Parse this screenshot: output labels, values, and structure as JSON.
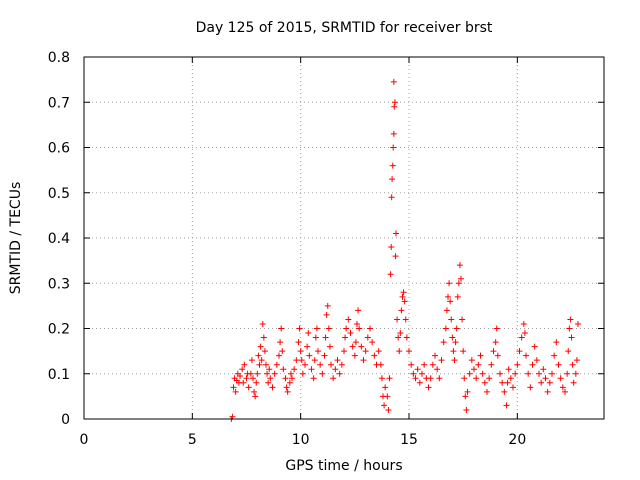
{
  "chart_data": {
    "type": "scatter",
    "title": "Day 125 of 2015, SRMTID for receiver brst",
    "xlabel": "GPS time / hours",
    "ylabel": "SRMTID / TECUs",
    "xlim": [
      0,
      24
    ],
    "ylim": [
      0,
      0.8
    ],
    "xticks": [
      0,
      5,
      10,
      15,
      20
    ],
    "yticks": [
      0,
      0.1,
      0.2,
      0.3,
      0.4,
      0.5,
      0.6,
      0.7,
      0.8
    ],
    "xtick_labels": [
      "0",
      "5",
      "10",
      "15",
      "20"
    ],
    "ytick_labels": [
      "0",
      "0.1",
      "0.2",
      "0.3",
      "0.4",
      "0.5",
      "0.6",
      "0.7",
      "0.8"
    ],
    "grid": true,
    "marker": "+",
    "colors": {
      "series": "#ff0000",
      "grid": "#a0a0a0",
      "axis": "#000000"
    },
    "series": [
      {
        "name": "SRMTID",
        "points": [
          [
            6.8,
            0.0
          ],
          [
            6.85,
            0.005
          ],
          [
            6.9,
            0.07
          ],
          [
            6.95,
            0.09
          ],
          [
            7.0,
            0.06
          ],
          [
            7.05,
            0.085
          ],
          [
            7.1,
            0.1
          ],
          [
            7.15,
            0.08
          ],
          [
            7.2,
            0.095
          ],
          [
            7.3,
            0.11
          ],
          [
            7.35,
            0.08
          ],
          [
            7.4,
            0.12
          ],
          [
            7.5,
            0.09
          ],
          [
            7.55,
            0.1
          ],
          [
            7.6,
            0.07
          ],
          [
            7.7,
            0.1
          ],
          [
            7.75,
            0.13
          ],
          [
            7.8,
            0.09
          ],
          [
            7.85,
            0.06
          ],
          [
            7.9,
            0.05
          ],
          [
            7.95,
            0.08
          ],
          [
            8.0,
            0.1
          ],
          [
            8.05,
            0.14
          ],
          [
            8.1,
            0.12
          ],
          [
            8.15,
            0.16
          ],
          [
            8.2,
            0.13
          ],
          [
            8.25,
            0.21
          ],
          [
            8.3,
            0.18
          ],
          [
            8.35,
            0.15
          ],
          [
            8.4,
            0.12
          ],
          [
            8.45,
            0.1
          ],
          [
            8.5,
            0.08
          ],
          [
            8.55,
            0.11
          ],
          [
            8.6,
            0.09
          ],
          [
            8.7,
            0.07
          ],
          [
            8.8,
            0.1
          ],
          [
            8.9,
            0.12
          ],
          [
            9.0,
            0.14
          ],
          [
            9.05,
            0.17
          ],
          [
            9.1,
            0.2
          ],
          [
            9.15,
            0.15
          ],
          [
            9.2,
            0.11
          ],
          [
            9.3,
            0.09
          ],
          [
            9.35,
            0.07
          ],
          [
            9.4,
            0.06
          ],
          [
            9.5,
            0.08
          ],
          [
            9.55,
            0.1
          ],
          [
            9.6,
            0.09
          ],
          [
            9.7,
            0.11
          ],
          [
            9.8,
            0.13
          ],
          [
            9.9,
            0.17
          ],
          [
            9.95,
            0.2
          ],
          [
            10.0,
            0.15
          ],
          [
            10.05,
            0.13
          ],
          [
            10.1,
            0.1
          ],
          [
            10.2,
            0.12
          ],
          [
            10.3,
            0.16
          ],
          [
            10.35,
            0.19
          ],
          [
            10.4,
            0.14
          ],
          [
            10.5,
            0.11
          ],
          [
            10.6,
            0.09
          ],
          [
            10.65,
            0.13
          ],
          [
            10.7,
            0.18
          ],
          [
            10.75,
            0.2
          ],
          [
            10.8,
            0.15
          ],
          [
            10.9,
            0.12
          ],
          [
            11.0,
            0.1
          ],
          [
            11.1,
            0.14
          ],
          [
            11.15,
            0.18
          ],
          [
            11.2,
            0.23
          ],
          [
            11.25,
            0.25
          ],
          [
            11.3,
            0.2
          ],
          [
            11.35,
            0.16
          ],
          [
            11.4,
            0.12
          ],
          [
            11.5,
            0.09
          ],
          [
            11.6,
            0.11
          ],
          [
            11.7,
            0.13
          ],
          [
            11.8,
            0.1
          ],
          [
            11.9,
            0.12
          ],
          [
            12.0,
            0.15
          ],
          [
            12.05,
            0.18
          ],
          [
            12.1,
            0.2
          ],
          [
            12.2,
            0.22
          ],
          [
            12.3,
            0.19
          ],
          [
            12.4,
            0.16
          ],
          [
            12.5,
            0.14
          ],
          [
            12.55,
            0.17
          ],
          [
            12.6,
            0.21
          ],
          [
            12.65,
            0.24
          ],
          [
            12.7,
            0.2
          ],
          [
            12.8,
            0.16
          ],
          [
            12.9,
            0.13
          ],
          [
            13.0,
            0.15
          ],
          [
            13.1,
            0.18
          ],
          [
            13.2,
            0.2
          ],
          [
            13.3,
            0.17
          ],
          [
            13.4,
            0.14
          ],
          [
            13.5,
            0.12
          ],
          [
            13.6,
            0.15
          ],
          [
            13.7,
            0.12
          ],
          [
            13.75,
            0.09
          ],
          [
            13.8,
            0.05
          ],
          [
            13.85,
            0.03
          ],
          [
            13.9,
            0.07
          ],
          [
            14.0,
            0.05
          ],
          [
            14.05,
            0.02
          ],
          [
            14.1,
            0.09
          ],
          [
            14.15,
            0.32
          ],
          [
            14.18,
            0.38
          ],
          [
            14.2,
            0.49
          ],
          [
            14.22,
            0.53
          ],
          [
            14.25,
            0.56
          ],
          [
            14.27,
            0.6
          ],
          [
            14.3,
            0.63
          ],
          [
            14.32,
            0.69
          ],
          [
            14.35,
            0.7
          ],
          [
            14.3,
            0.745
          ],
          [
            14.38,
            0.36
          ],
          [
            14.4,
            0.41
          ],
          [
            14.45,
            0.22
          ],
          [
            14.5,
            0.18
          ],
          [
            14.55,
            0.15
          ],
          [
            14.6,
            0.19
          ],
          [
            14.65,
            0.24
          ],
          [
            14.7,
            0.27
          ],
          [
            14.75,
            0.28
          ],
          [
            14.8,
            0.26
          ],
          [
            14.85,
            0.22
          ],
          [
            14.9,
            0.18
          ],
          [
            15.0,
            0.15
          ],
          [
            15.1,
            0.12
          ],
          [
            15.2,
            0.1
          ],
          [
            15.3,
            0.09
          ],
          [
            15.4,
            0.11
          ],
          [
            15.5,
            0.08
          ],
          [
            15.6,
            0.1
          ],
          [
            15.7,
            0.12
          ],
          [
            15.8,
            0.09
          ],
          [
            15.9,
            0.07
          ],
          [
            16.0,
            0.09
          ],
          [
            16.1,
            0.12
          ],
          [
            16.2,
            0.14
          ],
          [
            16.3,
            0.11
          ],
          [
            16.4,
            0.09
          ],
          [
            16.5,
            0.13
          ],
          [
            16.6,
            0.17
          ],
          [
            16.7,
            0.2
          ],
          [
            16.75,
            0.24
          ],
          [
            16.8,
            0.27
          ],
          [
            16.85,
            0.3
          ],
          [
            16.9,
            0.26
          ],
          [
            16.95,
            0.22
          ],
          [
            17.0,
            0.18
          ],
          [
            17.05,
            0.15
          ],
          [
            17.1,
            0.13
          ],
          [
            17.15,
            0.17
          ],
          [
            17.2,
            0.2
          ],
          [
            17.25,
            0.27
          ],
          [
            17.3,
            0.3
          ],
          [
            17.35,
            0.34
          ],
          [
            17.4,
            0.31
          ],
          [
            17.45,
            0.22
          ],
          [
            17.5,
            0.15
          ],
          [
            17.55,
            0.09
          ],
          [
            17.6,
            0.05
          ],
          [
            17.65,
            0.02
          ],
          [
            17.7,
            0.06
          ],
          [
            17.8,
            0.1
          ],
          [
            17.9,
            0.13
          ],
          [
            18.0,
            0.11
          ],
          [
            18.1,
            0.09
          ],
          [
            18.2,
            0.12
          ],
          [
            18.3,
            0.14
          ],
          [
            18.4,
            0.1
          ],
          [
            18.5,
            0.08
          ],
          [
            18.6,
            0.06
          ],
          [
            18.7,
            0.09
          ],
          [
            18.8,
            0.12
          ],
          [
            18.9,
            0.15
          ],
          [
            19.0,
            0.17
          ],
          [
            19.05,
            0.2
          ],
          [
            19.1,
            0.14
          ],
          [
            19.2,
            0.1
          ],
          [
            19.3,
            0.08
          ],
          [
            19.4,
            0.06
          ],
          [
            19.5,
            0.03
          ],
          [
            19.55,
            0.08
          ],
          [
            19.6,
            0.11
          ],
          [
            19.7,
            0.09
          ],
          [
            19.8,
            0.07
          ],
          [
            19.9,
            0.1
          ],
          [
            20.0,
            0.12
          ],
          [
            20.1,
            0.15
          ],
          [
            20.2,
            0.18
          ],
          [
            20.3,
            0.21
          ],
          [
            20.35,
            0.19
          ],
          [
            20.4,
            0.14
          ],
          [
            20.5,
            0.1
          ],
          [
            20.6,
            0.07
          ],
          [
            20.7,
            0.12
          ],
          [
            20.8,
            0.16
          ],
          [
            20.9,
            0.13
          ],
          [
            21.0,
            0.1
          ],
          [
            21.1,
            0.08
          ],
          [
            21.2,
            0.11
          ],
          [
            21.3,
            0.09
          ],
          [
            21.4,
            0.06
          ],
          [
            21.5,
            0.08
          ],
          [
            21.6,
            0.1
          ],
          [
            21.7,
            0.14
          ],
          [
            21.8,
            0.17
          ],
          [
            21.9,
            0.12
          ],
          [
            22.0,
            0.09
          ],
          [
            22.1,
            0.07
          ],
          [
            22.2,
            0.06
          ],
          [
            22.3,
            0.1
          ],
          [
            22.35,
            0.15
          ],
          [
            22.4,
            0.2
          ],
          [
            22.45,
            0.22
          ],
          [
            22.5,
            0.18
          ],
          [
            22.55,
            0.12
          ],
          [
            22.6,
            0.08
          ],
          [
            22.7,
            0.1
          ],
          [
            22.75,
            0.13
          ],
          [
            22.8,
            0.21
          ]
        ]
      }
    ]
  }
}
